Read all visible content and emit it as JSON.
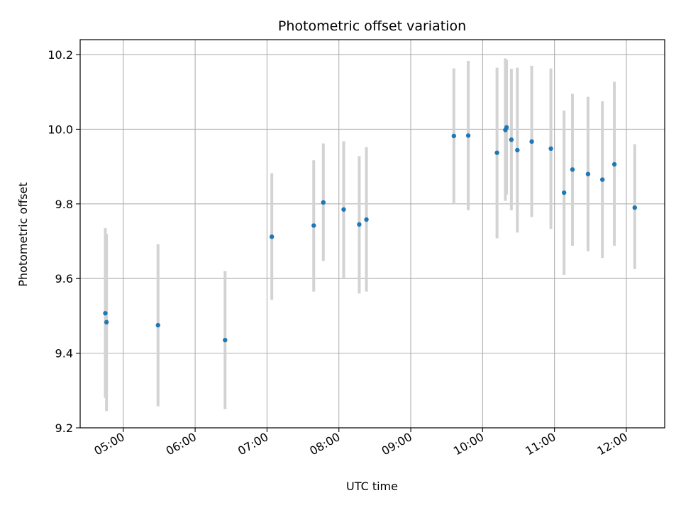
{
  "chart_data": {
    "type": "scatter",
    "title": "Photometric offset variation",
    "xlabel": "UTC time",
    "ylabel": "Photometric offset",
    "x_is_time": true,
    "xlim": [
      "04:24",
      "12:32"
    ],
    "ylim": [
      9.2,
      10.24
    ],
    "x_ticks": [
      "05:00",
      "06:00",
      "07:00",
      "08:00",
      "09:00",
      "10:00",
      "11:00",
      "12:00"
    ],
    "y_ticks": [
      "9.2",
      "9.4",
      "9.6",
      "9.8",
      "10.0",
      "10.2"
    ],
    "grid": true,
    "marker_color": "#1f77b4",
    "errorbar_color": "#d3d3d3",
    "points": [
      {
        "t": "04:45",
        "y": 9.507,
        "lo": 9.28,
        "hi": 9.735
      },
      {
        "t": "04:46",
        "y": 9.483,
        "lo": 9.245,
        "hi": 9.72
      },
      {
        "t": "05:29",
        "y": 9.475,
        "lo": 9.258,
        "hi": 9.692
      },
      {
        "t": "06:25",
        "y": 9.435,
        "lo": 9.25,
        "hi": 9.62
      },
      {
        "t": "07:04",
        "y": 9.712,
        "lo": 9.543,
        "hi": 9.882
      },
      {
        "t": "07:39",
        "y": 9.742,
        "lo": 9.565,
        "hi": 9.917
      },
      {
        "t": "07:47",
        "y": 9.804,
        "lo": 9.647,
        "hi": 9.962
      },
      {
        "t": "08:04",
        "y": 9.785,
        "lo": 9.6,
        "hi": 9.968
      },
      {
        "t": "08:17",
        "y": 9.745,
        "lo": 9.56,
        "hi": 9.928
      },
      {
        "t": "08:23",
        "y": 9.758,
        "lo": 9.565,
        "hi": 9.952
      },
      {
        "t": "09:36",
        "y": 9.982,
        "lo": 9.8,
        "hi": 10.163
      },
      {
        "t": "09:48",
        "y": 9.983,
        "lo": 9.783,
        "hi": 10.183
      },
      {
        "t": "10:12",
        "y": 9.937,
        "lo": 9.708,
        "hi": 10.165
      },
      {
        "t": "10:19",
        "y": 9.998,
        "lo": 9.808,
        "hi": 10.19
      },
      {
        "t": "10:20",
        "y": 10.005,
        "lo": 9.825,
        "hi": 10.185
      },
      {
        "t": "10:24",
        "y": 9.972,
        "lo": 9.783,
        "hi": 10.162
      },
      {
        "t": "10:29",
        "y": 9.944,
        "lo": 9.723,
        "hi": 10.165
      },
      {
        "t": "10:41",
        "y": 9.967,
        "lo": 9.765,
        "hi": 10.17
      },
      {
        "t": "10:57",
        "y": 9.948,
        "lo": 9.733,
        "hi": 10.163
      },
      {
        "t": "11:08",
        "y": 9.83,
        "lo": 9.61,
        "hi": 10.05
      },
      {
        "t": "11:15",
        "y": 9.892,
        "lo": 9.688,
        "hi": 10.095
      },
      {
        "t": "11:28",
        "y": 9.88,
        "lo": 9.673,
        "hi": 10.087
      },
      {
        "t": "11:40",
        "y": 9.865,
        "lo": 9.655,
        "hi": 10.075
      },
      {
        "t": "11:50",
        "y": 9.906,
        "lo": 9.688,
        "hi": 10.127
      },
      {
        "t": "12:07",
        "y": 9.79,
        "lo": 9.625,
        "hi": 9.96
      }
    ]
  }
}
